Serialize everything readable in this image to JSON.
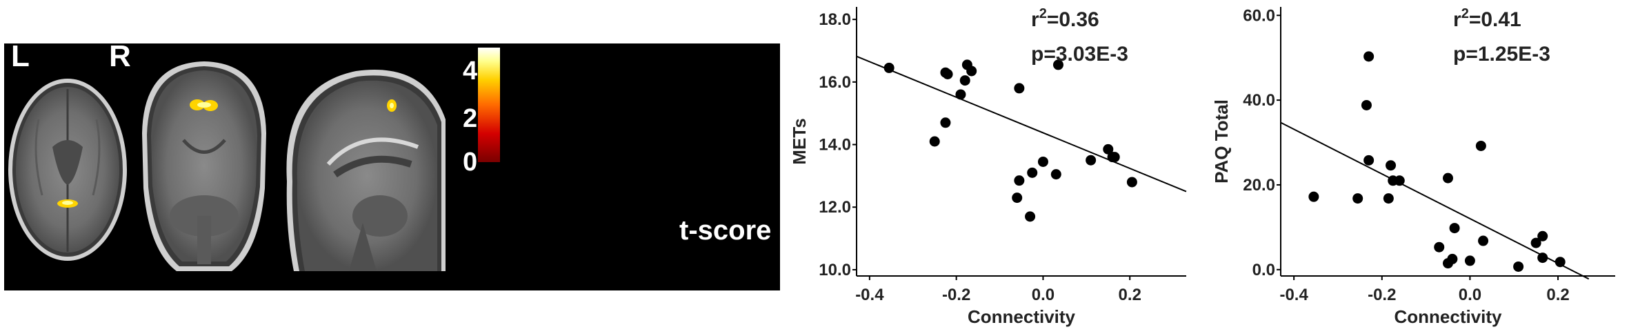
{
  "brain_figure": {
    "left_label": "L",
    "right_label": "R",
    "colorbar": {
      "ticks": [
        "4",
        "2",
        "0"
      ],
      "label": "t-score",
      "colors": [
        "#7a0000",
        "#d40000",
        "#ff6a00",
        "#ffd000",
        "#ffff8c",
        "#ffffff"
      ]
    }
  },
  "chart_data": [
    {
      "type": "scatter",
      "xlabel": "Connectivity",
      "ylabel": "METs",
      "xlim": [
        -0.43,
        0.33
      ],
      "ylim": [
        9.8,
        18.4
      ],
      "xticks": [
        -0.4,
        -0.2,
        0.0,
        0.2
      ],
      "xtick_labels": [
        "-0.4",
        "-0.2",
        "0.0",
        "0.2"
      ],
      "yticks": [
        10,
        12,
        14,
        16,
        18
      ],
      "ytick_labels": [
        "10.0",
        "12.0",
        "14.0",
        "16.0",
        "18.0"
      ],
      "annotation": {
        "r2_prefix": "r",
        "r2_sup": "2",
        "r2_value": "=0.36",
        "p": "p=3.03E-3"
      },
      "grid": false,
      "points": [
        [
          -0.355,
          16.45
        ],
        [
          -0.225,
          16.3
        ],
        [
          -0.22,
          16.25
        ],
        [
          -0.175,
          16.55
        ],
        [
          -0.165,
          16.35
        ],
        [
          -0.18,
          16.05
        ],
        [
          -0.19,
          15.6
        ],
        [
          -0.225,
          14.7
        ],
        [
          -0.25,
          14.1
        ],
        [
          -0.055,
          15.8
        ],
        [
          0.035,
          16.55
        ],
        [
          -0.06,
          12.3
        ],
        [
          -0.055,
          12.85
        ],
        [
          -0.03,
          11.7
        ],
        [
          -0.025,
          13.1
        ],
        [
          0.0,
          13.45
        ],
        [
          0.03,
          13.05
        ],
        [
          0.11,
          13.5
        ],
        [
          0.15,
          13.85
        ],
        [
          0.165,
          13.6
        ],
        [
          0.16,
          13.6
        ],
        [
          0.205,
          12.8
        ]
      ],
      "fit": {
        "x": [
          -0.43,
          0.33
        ],
        "y": [
          16.82,
          12.5
        ]
      }
    },
    {
      "type": "scatter",
      "xlabel": "Connectivity",
      "ylabel": "PAQ Total",
      "xlim": [
        -0.43,
        0.33
      ],
      "ylim": [
        -1.5,
        62
      ],
      "xticks": [
        -0.4,
        -0.2,
        0.0,
        0.2
      ],
      "xtick_labels": [
        "-0.4",
        "-0.2",
        "0.0",
        "0.2"
      ],
      "yticks": [
        0,
        20,
        40,
        60
      ],
      "ytick_labels": [
        "0.0",
        "20.0",
        "40.0",
        "60.0"
      ],
      "annotation": {
        "r2_prefix": "r",
        "r2_sup": "2",
        "r2_value": "=0.41",
        "p": "p=1.25E-3"
      },
      "grid": false,
      "points": [
        [
          -0.355,
          17.2
        ],
        [
          -0.255,
          16.8
        ],
        [
          -0.23,
          50.3
        ],
        [
          -0.235,
          38.8
        ],
        [
          -0.23,
          25.8
        ],
        [
          -0.18,
          24.6
        ],
        [
          -0.185,
          16.8
        ],
        [
          -0.175,
          21.0
        ],
        [
          -0.16,
          21.0
        ],
        [
          -0.05,
          21.6
        ],
        [
          0.025,
          29.2
        ],
        [
          -0.07,
          5.3
        ],
        [
          -0.05,
          1.5
        ],
        [
          -0.04,
          2.5
        ],
        [
          -0.035,
          9.8
        ],
        [
          0.0,
          2.1
        ],
        [
          0.03,
          6.8
        ],
        [
          0.11,
          0.7
        ],
        [
          0.15,
          6.3
        ],
        [
          0.165,
          7.9
        ],
        [
          0.165,
          2.8
        ],
        [
          0.205,
          1.8
        ]
      ],
      "fit": {
        "x": [
          -0.43,
          0.27
        ],
        "y": [
          34.7,
          -2.2
        ]
      }
    }
  ]
}
